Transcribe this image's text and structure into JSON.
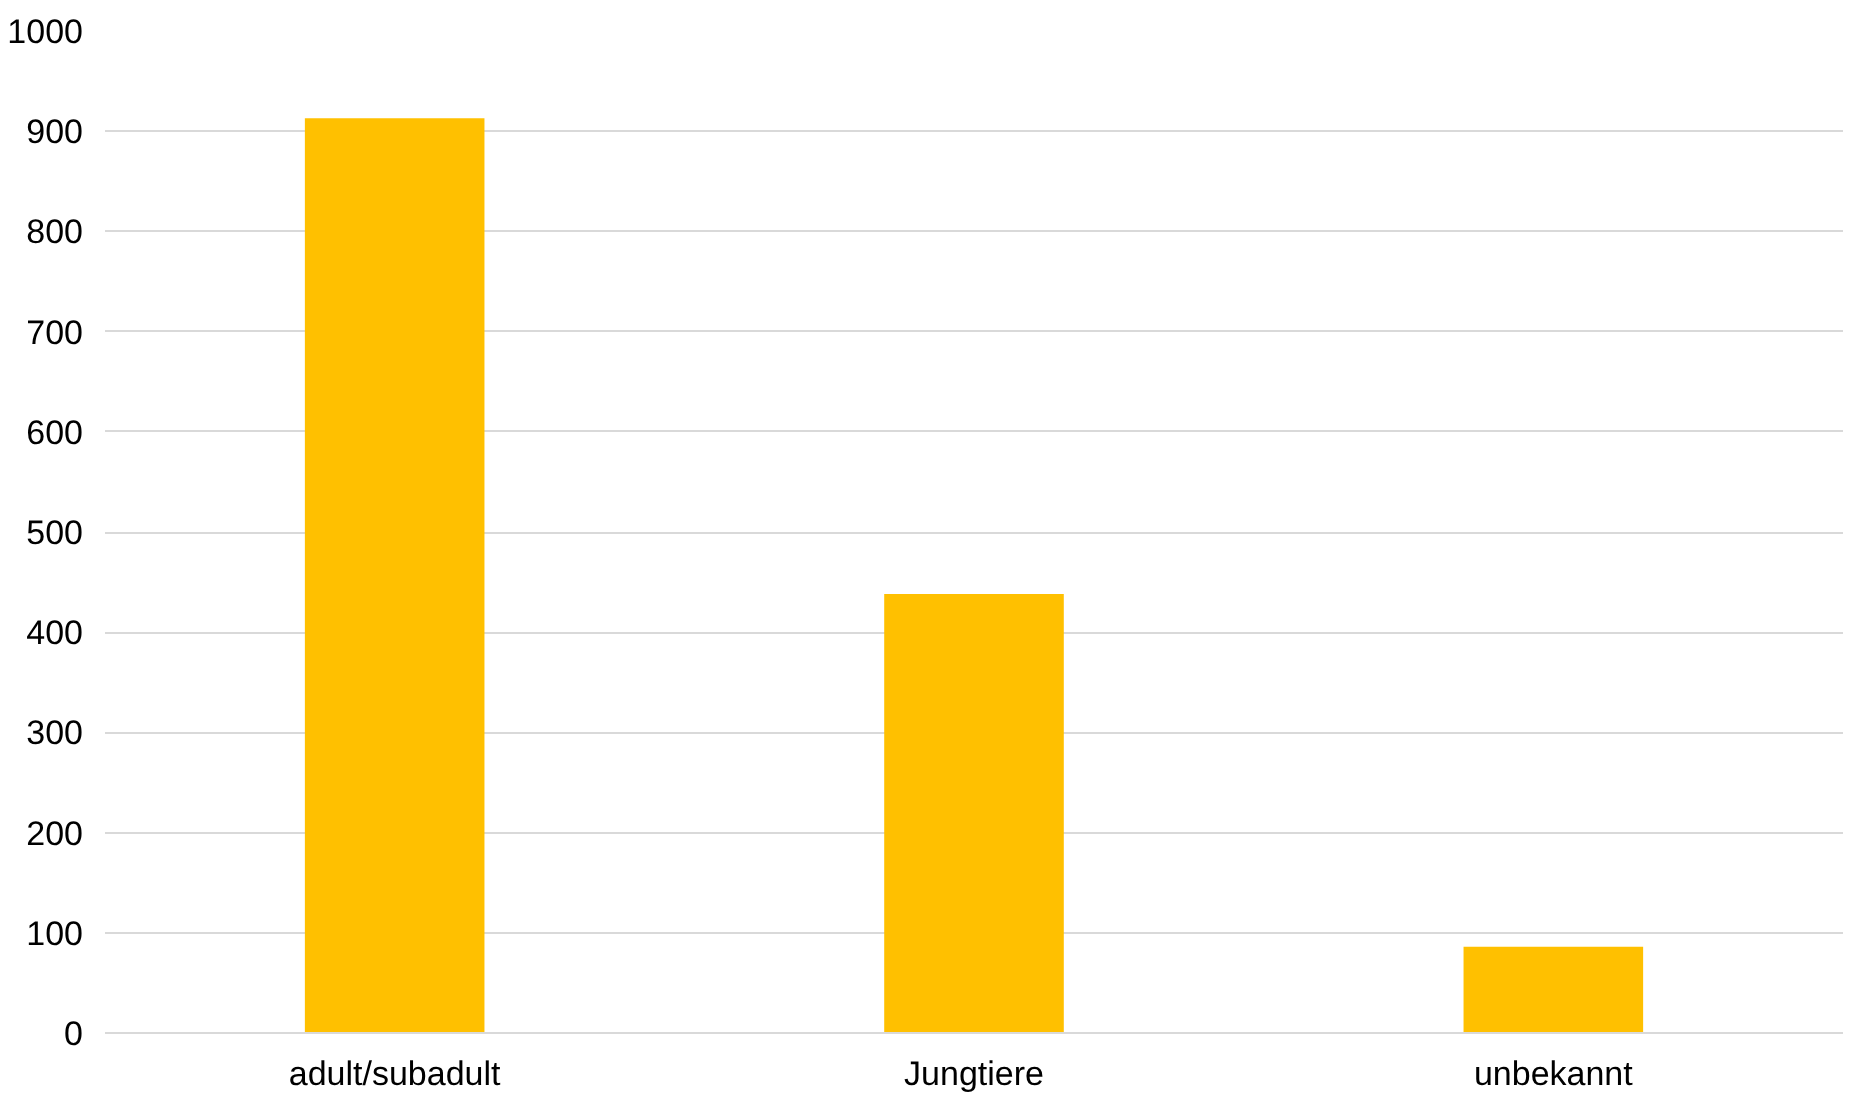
{
  "chart_data": {
    "type": "bar",
    "categories": [
      "adult/subadult",
      "Jungtiere",
      "unbekannt"
    ],
    "values": [
      913,
      438,
      86
    ],
    "color": "#ffc000",
    "ylim": [
      0,
      1000
    ],
    "yticks": [
      0,
      100,
      200,
      300,
      400,
      500,
      600,
      700,
      800,
      900,
      1000
    ],
    "grid": "y"
  }
}
